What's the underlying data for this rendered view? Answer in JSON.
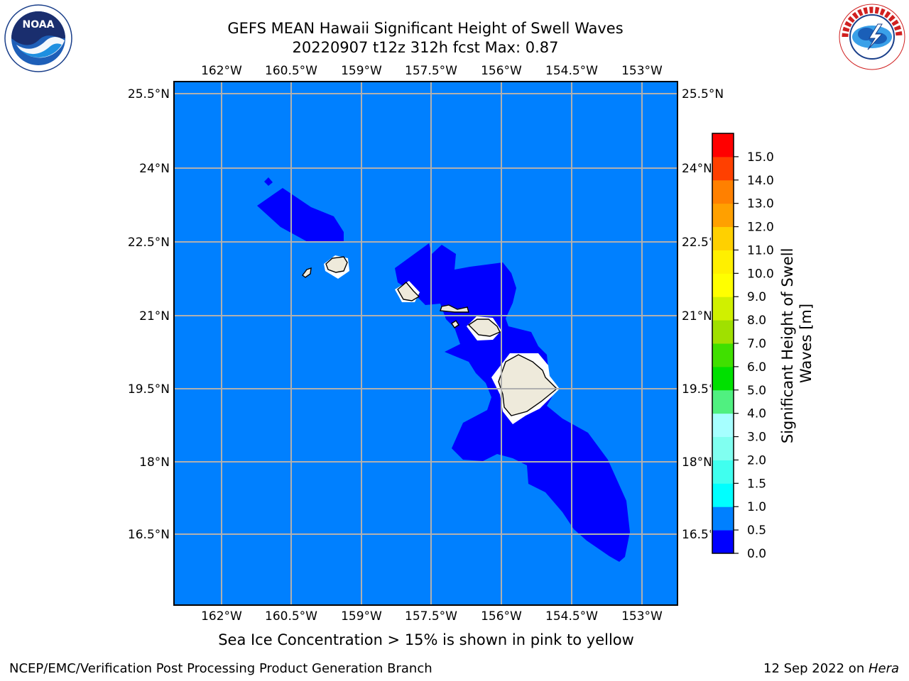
{
  "header": {
    "title_line1": "GEFS MEAN Hawaii Significant Height of Swell Waves",
    "title_line2": "20220907 t12z 312h fcst   Max: 0.87"
  },
  "logos": {
    "left_icon": "noaa-logo",
    "left_text": "NOAA",
    "left_ring_text": "NATIONAL OCEANIC AND ATMOSPHERIC ADMINISTRATION · U.S. DEPARTMENT OF COMMERCE",
    "right_icon": "nws-logo",
    "right_ring_text": "NATIONAL WEATHER SERVICE"
  },
  "map": {
    "lon_labels": [
      "162°W",
      "160.5°W",
      "159°W",
      "157.5°W",
      "156°W",
      "154.5°W",
      "153°W"
    ],
    "lat_labels": [
      "25.5°N",
      "24°N",
      "22.5°N",
      "21°N",
      "19.5°N",
      "18°N",
      "16.5°N"
    ],
    "ocean_color": "#0080ff",
    "swell_color": "#0000ff",
    "land_color": "#eeeadb"
  },
  "colorbar": {
    "label": "Significant Height of Swell Waves [m]",
    "ticks": [
      "0.0",
      "0.5",
      "1.0",
      "1.5",
      "2.0",
      "3.0",
      "4.0",
      "5.0",
      "6.0",
      "7.0",
      "8.0",
      "9.0",
      "10.0",
      "11.0",
      "12.0",
      "13.0",
      "14.0",
      "15.0"
    ],
    "colors": [
      "#0000ff",
      "#0080ff",
      "#00ffff",
      "#40ffef",
      "#80fff0",
      "#a6ffff",
      "#50f080",
      "#00e000",
      "#40e000",
      "#a0e000",
      "#d0f000",
      "#ffff00",
      "#fff000",
      "#ffd000",
      "#ffa000",
      "#ff8000",
      "#ff4000",
      "#ff0000"
    ]
  },
  "footer": {
    "note": "Sea Ice Concentration > 15% is shown in pink to yellow",
    "left": "NCEP/EMC/Verification Post Processing Product Generation Branch",
    "right_date": "12 Sep 2022 on ",
    "right_host": "Hera"
  }
}
